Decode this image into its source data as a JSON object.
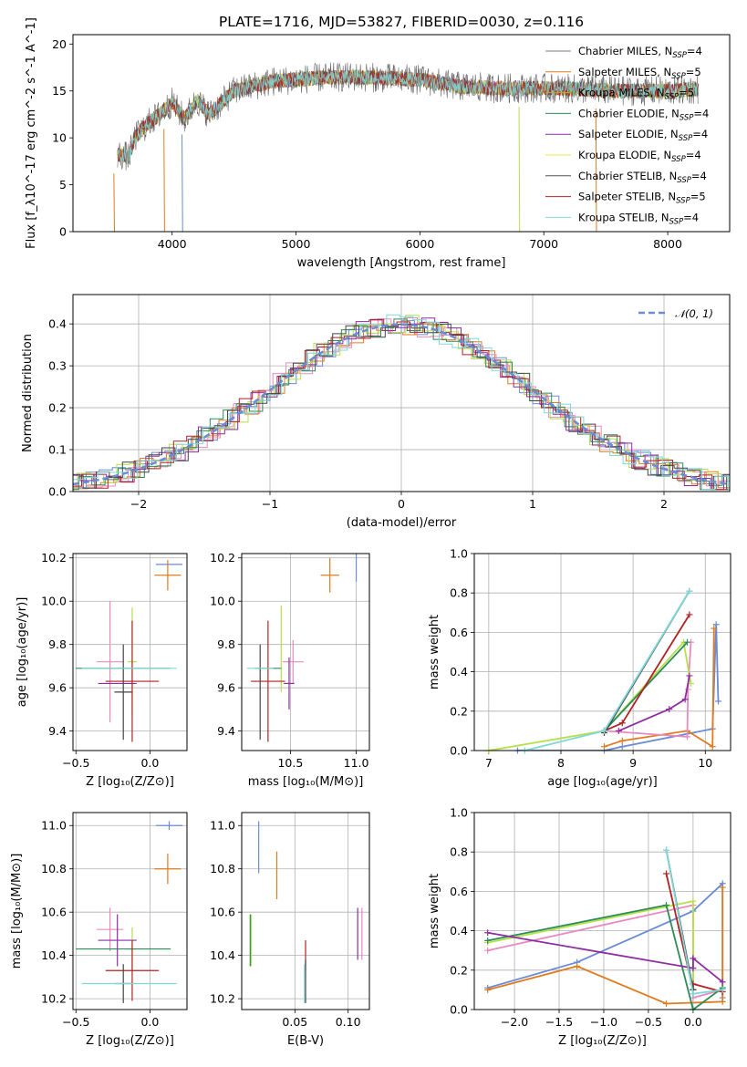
{
  "title": "PLATE=1716, MJD=53827, FIBERID=0030, z=0.116",
  "colors": {
    "miles_chabrier": "#7f7f7f",
    "miles_salpeter": "#e07b20",
    "miles_kroupa": "#d4a017",
    "elodie_chabrier": "#2e8b57",
    "elodie_salpeter": "#8e2da0",
    "elodie_kroupa": "#e8e84a",
    "stelib_chabrier": "#555555",
    "stelib_salpeter": "#b22222",
    "stelib_kroupa": "#7fd8d8",
    "blue": "#6a8bd6",
    "orange": "#e07b20",
    "pink": "#e88ac0",
    "lime": "#b4e04a",
    "green": "#2e8b57",
    "purple": "#8e2da0",
    "red": "#b22222",
    "cyan": "#7fd8d8",
    "dark": "#444444"
  },
  "legend_spectrum": [
    {
      "name": "Chabrier MILES, N",
      "sub": "SSP",
      "tail": "=4"
    },
    {
      "name": "Salpeter MILES, N",
      "sub": "SSP",
      "tail": "=5"
    },
    {
      "name": "Kroupa MILES, N",
      "sub": "SSP",
      "tail": "=5"
    },
    {
      "name": "Chabrier ELODIE, N",
      "sub": "SSP",
      "tail": "=4"
    },
    {
      "name": "Salpeter ELODIE, N",
      "sub": "SSP",
      "tail": "=4"
    },
    {
      "name": "Kroupa ELODIE, N",
      "sub": "SSP",
      "tail": "=4"
    },
    {
      "name": "Chabrier STELIB, N",
      "sub": "SSP",
      "tail": "=4"
    },
    {
      "name": "Salpeter STELIB, N",
      "sub": "SSP",
      "tail": "=5"
    },
    {
      "name": "Kroupa STELIB, N",
      "sub": "SSP",
      "tail": "=4"
    }
  ],
  "legend_hist": "𝒩(0, 1)",
  "chart_data": [
    {
      "id": "spectrum",
      "type": "line",
      "xlabel": "wavelength [Angstrom, rest frame]",
      "ylabel": "Flux [f_λ10^-17 erg cm^-2 s^-1 A^-1]",
      "xlim": [
        3200,
        8500
      ],
      "ylim": [
        0,
        21
      ],
      "xticks": [
        4000,
        5000,
        6000,
        7000,
        8000
      ],
      "yticks": [
        0,
        5,
        10,
        15,
        20
      ],
      "grid": false,
      "legend_position": "top-right",
      "continuum": {
        "x": [
          3560,
          3650,
          3700,
          3800,
          3900,
          4000,
          4100,
          4200,
          4300,
          4500,
          4800,
          5000,
          5200,
          5500,
          6000,
          6300,
          6600,
          7000,
          7300,
          7600,
          8000,
          8250
        ],
        "y": [
          8.2,
          8.0,
          10.0,
          11.5,
          12.5,
          13.8,
          12.0,
          14.0,
          12.5,
          15.0,
          16.0,
          16.2,
          16.4,
          16.5,
          16.2,
          15.5,
          15.3,
          15.3,
          15.2,
          15.0,
          15.0,
          15.2
        ]
      },
      "dips": [
        {
          "x": 3530,
          "y": 0.0
        },
        {
          "x": 3934,
          "y": 0.0
        },
        {
          "x": 4080,
          "y": 0.0
        },
        {
          "x": 6800,
          "y": 0.0
        },
        {
          "x": 7420,
          "y": 0.0
        }
      ]
    },
    {
      "id": "residuals",
      "type": "line",
      "xlabel": "(data-model)/error",
      "ylabel": "Normed distribution",
      "xlim": [
        -2.5,
        2.5
      ],
      "ylim": [
        0,
        0.47
      ],
      "xticks": [
        -2,
        -1,
        0,
        1,
        2
      ],
      "yticks": [
        0.0,
        0.1,
        0.2,
        0.3,
        0.4
      ],
      "grid": true,
      "legend_position": "top-right",
      "normal": {
        "mean": 0,
        "sigma": 1
      }
    },
    {
      "id": "age_vs_Z",
      "type": "scatter",
      "xlabel": "Z [log₁₀(Z/Z⊙)]",
      "ylabel": "age  [log₁₀(age/yr)]",
      "xlim": [
        -0.52,
        0.25
      ],
      "ylim": [
        9.31,
        10.22
      ],
      "xticks": [
        -0.5,
        0.0
      ],
      "xticklabels": [
        "−0.5",
        "0.0"
      ],
      "yticks": [
        9.4,
        9.6,
        9.8,
        10.0,
        10.2
      ],
      "grid": true,
      "points": [
        {
          "c": "blue",
          "x": 0.13,
          "xe": 0.09,
          "y": 10.17,
          "ye": 0.0
        },
        {
          "c": "orange",
          "x": 0.12,
          "xe": 0.09,
          "y": 10.12,
          "ye": 0.07
        },
        {
          "c": "pink",
          "x": -0.27,
          "xe": 0.09,
          "y": 9.72,
          "ye": 0.28
        },
        {
          "c": "lime",
          "x": -0.12,
          "xe": 0.03,
          "y": 9.72,
          "ye": 0.25
        },
        {
          "c": "green",
          "x": -0.18,
          "xe": 0.32,
          "y": 9.69,
          "ye": 0.0
        },
        {
          "c": "purple",
          "x": -0.22,
          "xe": 0.13,
          "y": 9.62,
          "ye": 0.0
        },
        {
          "c": "red",
          "x": -0.12,
          "xe": 0.18,
          "y": 9.63,
          "ye": 0.28
        },
        {
          "c": "dark",
          "x": -0.18,
          "xe": 0.06,
          "y": 9.58,
          "ye": 0.22
        },
        {
          "c": "cyan",
          "x": -0.14,
          "xe": 0.32,
          "y": 9.69,
          "ye": 0.0
        }
      ]
    },
    {
      "id": "age_vs_mass",
      "type": "scatter",
      "xlabel": "mass [log₁₀(M/M⊙)]",
      "xlim": [
        10.13,
        11.1
      ],
      "ylim": [
        9.31,
        10.22
      ],
      "xticks": [
        10.5,
        11.0
      ],
      "xticklabels": [
        "10.5",
        "11.0"
      ],
      "yticks": [
        9.4,
        9.6,
        9.8,
        10.0,
        10.2
      ],
      "grid": true,
      "points": [
        {
          "c": "blue",
          "x": 11.0,
          "xe": 0.0,
          "y": 10.17,
          "ye": 0.08
        },
        {
          "c": "orange",
          "x": 10.8,
          "xe": 0.07,
          "y": 10.12,
          "ye": 0.08
        },
        {
          "c": "pink",
          "x": 10.52,
          "xe": 0.08,
          "y": 9.72,
          "ye": 0.1
        },
        {
          "c": "lime",
          "x": 10.43,
          "xe": 0.0,
          "y": 9.78,
          "ye": 0.2
        },
        {
          "c": "green",
          "x": 10.33,
          "xe": 0.1,
          "y": 9.69,
          "ye": 0.0
        },
        {
          "c": "purple",
          "x": 10.49,
          "xe": 0.04,
          "y": 9.62,
          "ye": 0.12
        },
        {
          "c": "red",
          "x": 10.33,
          "xe": 0.13,
          "y": 9.63,
          "ye": 0.28
        },
        {
          "c": "dark",
          "x": 10.27,
          "xe": 0.0,
          "y": 9.58,
          "ye": 0.22
        },
        {
          "c": "cyan",
          "x": 10.27,
          "xe": 0.1,
          "y": 9.69,
          "ye": 0.0
        }
      ]
    },
    {
      "id": "weight_vs_age",
      "type": "line",
      "xlabel": "age  [log₁₀(age/yr)]",
      "ylabel": "mass weight",
      "xlim": [
        6.8,
        10.35
      ],
      "ylim": [
        0,
        1.0
      ],
      "xticks": [
        7,
        8,
        9,
        10
      ],
      "yticks": [
        0.0,
        0.2,
        0.4,
        0.6,
        0.8,
        1.0
      ],
      "grid": true,
      "series": [
        {
          "c": "blue",
          "x": [
            7.4,
            8.6,
            8.85,
            10.1,
            10.15,
            10.18
          ],
          "y": [
            0.0,
            0.0,
            0.02,
            0.11,
            0.64,
            0.25
          ]
        },
        {
          "c": "orange",
          "x": [
            8.6,
            8.85,
            9.75,
            10.1,
            10.12
          ],
          "y": [
            0.02,
            0.05,
            0.1,
            0.02,
            0.62
          ]
        },
        {
          "c": "pink",
          "x": [
            8.6,
            9.75,
            9.76,
            9.8
          ],
          "y": [
            0.1,
            0.07,
            0.31,
            0.55
          ]
        },
        {
          "c": "lime",
          "x": [
            7.0,
            8.6,
            9.7,
            9.8
          ],
          "y": [
            0.0,
            0.1,
            0.55,
            0.34
          ]
        },
        {
          "c": "green",
          "x": [
            8.6,
            9.75
          ],
          "y": [
            0.1,
            0.55
          ]
        },
        {
          "c": "purple",
          "x": [
            8.8,
            9.5,
            9.72,
            9.78
          ],
          "y": [
            0.1,
            0.21,
            0.26,
            0.38
          ]
        },
        {
          "c": "red",
          "x": [
            8.6,
            8.85,
            9.78
          ],
          "y": [
            0.1,
            0.14,
            0.69
          ]
        },
        {
          "c": "dark",
          "x": [
            8.6,
            9.78
          ],
          "y": [
            0.09,
            0.81
          ]
        },
        {
          "c": "cyan",
          "x": [
            7.5,
            8.6,
            9.78
          ],
          "y": [
            0.0,
            0.1,
            0.81
          ]
        }
      ]
    },
    {
      "id": "mass_vs_Z",
      "type": "scatter",
      "xlabel": "Z [log₁₀(Z/Z⊙)]",
      "ylabel": "mass [log₁₀(M/M⊙)]",
      "xlim": [
        -0.52,
        0.25
      ],
      "ylim": [
        10.15,
        11.06
      ],
      "xticks": [
        -0.5,
        0.0
      ],
      "xticklabels": [
        "−0.5",
        "0.0"
      ],
      "yticks": [
        10.2,
        10.4,
        10.6,
        10.8,
        11.0
      ],
      "grid": true,
      "points": [
        {
          "c": "blue",
          "x": 0.13,
          "xe": 0.09,
          "y": 11.0,
          "ye": 0.02
        },
        {
          "c": "orange",
          "x": 0.12,
          "xe": 0.09,
          "y": 10.8,
          "ye": 0.07
        },
        {
          "c": "pink",
          "x": -0.27,
          "xe": 0.09,
          "y": 10.52,
          "ye": 0.1
        },
        {
          "c": "lime",
          "x": -0.12,
          "xe": 0.03,
          "y": 10.43,
          "ye": 0.1
        },
        {
          "c": "green",
          "x": -0.18,
          "xe": 0.32,
          "y": 10.43,
          "ye": 0.0
        },
        {
          "c": "purple",
          "x": -0.22,
          "xe": 0.13,
          "y": 10.47,
          "ye": 0.12
        },
        {
          "c": "red",
          "x": -0.12,
          "xe": 0.18,
          "y": 10.33,
          "ye": 0.14
        },
        {
          "c": "dark",
          "x": -0.18,
          "xe": 0.06,
          "y": 10.27,
          "ye": 0.09
        },
        {
          "c": "cyan",
          "x": -0.14,
          "xe": 0.32,
          "y": 10.27,
          "ye": 0.0
        }
      ]
    },
    {
      "id": "mass_vs_ebv",
      "type": "scatter",
      "xlabel": "E(B-V)",
      "xlim": [
        0.0,
        0.12
      ],
      "ylim": [
        10.15,
        11.06
      ],
      "xticks": [
        0.05,
        0.1
      ],
      "xticklabels": [
        "0.05",
        "0.10"
      ],
      "yticks": [
        10.2,
        10.4,
        10.6,
        10.8,
        11.0
      ],
      "grid": true,
      "points": [
        {
          "c": "blue",
          "x": 0.016,
          "xe": 0.0,
          "y": 10.9,
          "ye": 0.12
        },
        {
          "c": "orange",
          "x": 0.033,
          "xe": 0.0,
          "y": 10.77,
          "ye": 0.11
        },
        {
          "c": "pink",
          "x": 0.113,
          "xe": 0.0,
          "y": 10.5,
          "ye": 0.12
        },
        {
          "c": "lime",
          "x": 0.009,
          "xe": 0.0,
          "y": 10.47,
          "ye": 0.12
        },
        {
          "c": "green",
          "x": 0.008,
          "xe": 0.0,
          "y": 10.47,
          "ye": 0.12
        },
        {
          "c": "purple",
          "x": 0.109,
          "xe": 0.0,
          "y": 10.5,
          "ye": 0.12
        },
        {
          "c": "red",
          "x": 0.06,
          "xe": 0.0,
          "y": 10.4,
          "ye": 0.07
        },
        {
          "c": "dark",
          "x": 0.06,
          "xe": 0.0,
          "y": 10.28,
          "ye": 0.1
        },
        {
          "c": "cyan",
          "x": 0.059,
          "xe": 0.0,
          "y": 10.27,
          "ye": 0.09
        }
      ]
    },
    {
      "id": "weight_vs_Z",
      "type": "line",
      "xlabel": "Z [log₁₀(Z/Z⊙)]",
      "ylabel": "mass weight",
      "xlim": [
        -2.45,
        0.42
      ],
      "ylim": [
        0,
        1.0
      ],
      "xticks": [
        -2.0,
        -1.5,
        -1.0,
        -0.5,
        0.0
      ],
      "xticklabels": [
        "−2.0",
        "−1.5",
        "−1.0",
        "−0.5",
        "0.0"
      ],
      "yticks": [
        0.0,
        0.2,
        0.4,
        0.6,
        0.8,
        1.0
      ],
      "grid": true,
      "series": [
        {
          "c": "blue",
          "x": [
            -2.3,
            -1.3,
            0.0,
            0.33,
            0.33
          ],
          "y": [
            0.11,
            0.24,
            0.5,
            0.64,
            0.06
          ]
        },
        {
          "c": "orange",
          "x": [
            -2.3,
            -1.3,
            -0.3,
            0.33,
            0.33
          ],
          "y": [
            0.1,
            0.22,
            0.03,
            0.04,
            0.62
          ]
        },
        {
          "c": "pink",
          "x": [
            -2.3,
            0.0,
            0.0,
            0.33
          ],
          "y": [
            0.3,
            0.53,
            0.06,
            0.1
          ]
        },
        {
          "c": "lime",
          "x": [
            -2.3,
            0.0,
            0.0
          ],
          "y": [
            0.34,
            0.55,
            0.1
          ]
        },
        {
          "c": "green",
          "x": [
            -2.3,
            -0.3,
            0.0,
            0.33
          ],
          "y": [
            0.35,
            0.53,
            0.0,
            0.11
          ]
        },
        {
          "c": "purple",
          "x": [
            -2.3,
            0.0,
            0.0,
            0.33
          ],
          "y": [
            0.39,
            0.21,
            0.26,
            0.14
          ]
        },
        {
          "c": "red",
          "x": [
            -0.3,
            0.0,
            0.0,
            0.33
          ],
          "y": [
            0.69,
            0.1,
            0.13,
            0.09
          ]
        },
        {
          "c": "dark",
          "x": [
            -0.3,
            0.0
          ],
          "y": [
            0.81,
            0.1
          ]
        },
        {
          "c": "cyan",
          "x": [
            -0.3,
            0.0,
            0.33
          ],
          "y": [
            0.81,
            0.08,
            0.1
          ]
        }
      ]
    }
  ]
}
